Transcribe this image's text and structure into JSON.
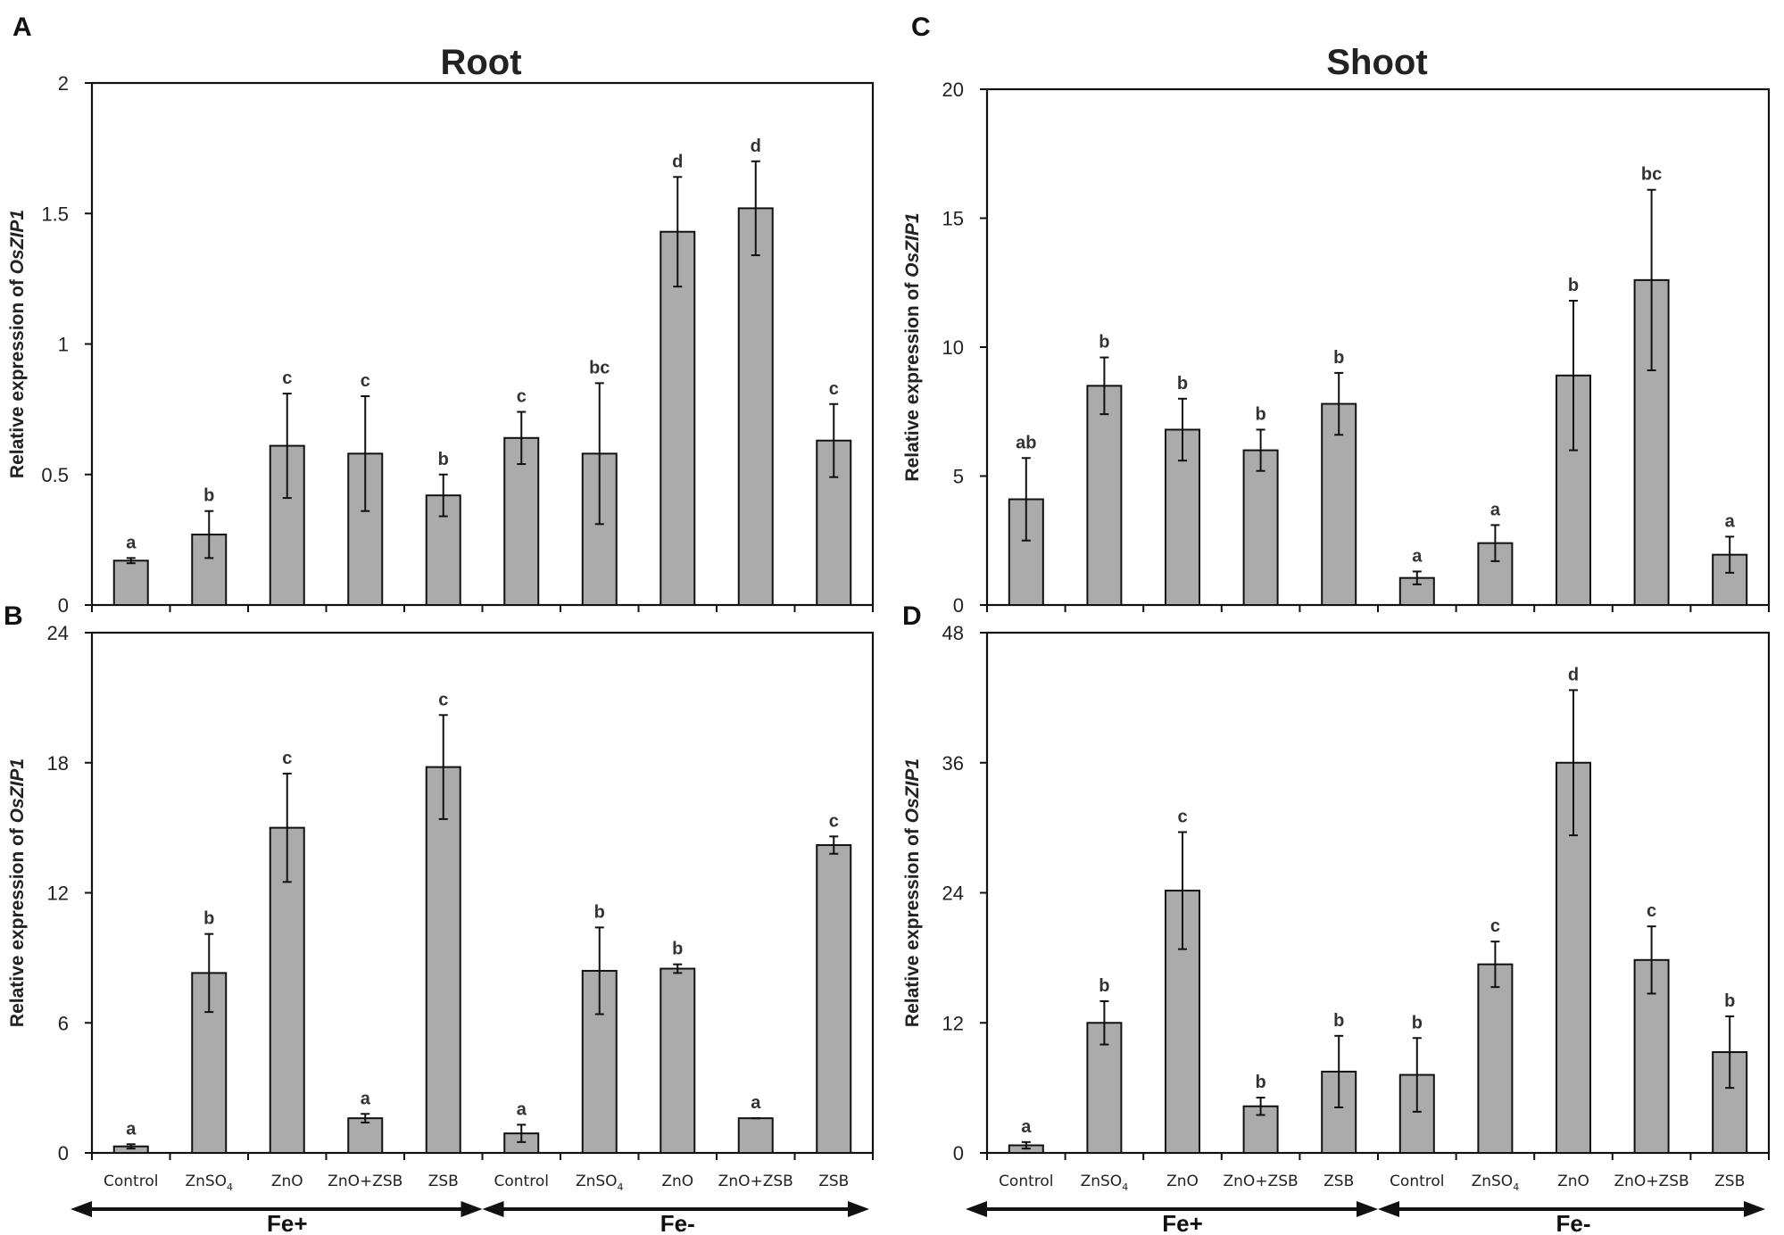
{
  "column_titles": {
    "root": "Root",
    "shoot": "Shoot"
  },
  "groups": [
    "Fe+",
    "Fe-"
  ],
  "chart_data": [
    {
      "panel": "A",
      "type": "bar",
      "title": "Root",
      "ylabel_prefix": "Relative expression of ",
      "ylabel_gene": "OsZIP1",
      "ylim": [
        0,
        2
      ],
      "yticks": [
        0,
        0.5,
        1,
        1.5,
        2
      ],
      "categories": [
        "Control",
        "ZnSO4",
        "ZnO",
        "ZnO+ZSB",
        "ZSB",
        "Control",
        "ZnSO4",
        "ZnO",
        "ZnO+ZSB",
        "ZSB"
      ],
      "values": [
        0.17,
        0.27,
        0.61,
        0.58,
        0.42,
        0.64,
        0.58,
        1.43,
        1.52,
        0.63
      ],
      "errors": [
        0.01,
        0.09,
        0.2,
        0.22,
        0.08,
        0.1,
        0.27,
        0.21,
        0.18,
        0.14
      ],
      "labels": [
        "a",
        "b",
        "c",
        "c",
        "b",
        "c",
        "bc",
        "d",
        "d",
        "c"
      ]
    },
    {
      "panel": "B",
      "type": "bar",
      "title": "",
      "ylabel_prefix": "Relative expression of ",
      "ylabel_gene": "OsZIP1",
      "ylim": [
        0,
        24
      ],
      "yticks": [
        0,
        6,
        12,
        18,
        24
      ],
      "categories": [
        "Control",
        "ZnSO4",
        "ZnO",
        "ZnO+ZSB",
        "ZSB",
        "Control",
        "ZnSO4",
        "ZnO",
        "ZnO+ZSB",
        "ZSB"
      ],
      "values": [
        0.3,
        8.3,
        15.0,
        1.6,
        17.8,
        0.9,
        8.4,
        8.5,
        1.6,
        14.2
      ],
      "errors": [
        0.1,
        1.8,
        2.5,
        0.2,
        2.4,
        0.4,
        2.0,
        0.2,
        0.0,
        0.4
      ],
      "labels": [
        "a",
        "b",
        "c",
        "a",
        "c",
        "a",
        "b",
        "b",
        "a",
        "c"
      ]
    },
    {
      "panel": "C",
      "type": "bar",
      "title": "Shoot",
      "ylabel_prefix": "Relative expression of ",
      "ylabel_gene": "OsZIP1",
      "ylim": [
        0,
        20
      ],
      "yticks": [
        0,
        5,
        10,
        15,
        20
      ],
      "categories": [
        "Control",
        "ZnSO4",
        "ZnO",
        "ZnO+ZSB",
        "ZSB",
        "Control",
        "ZnSO4",
        "ZnO",
        "ZnO+ZSB",
        "ZSB"
      ],
      "values": [
        4.1,
        8.5,
        6.8,
        6.0,
        7.8,
        1.05,
        2.4,
        8.9,
        12.6,
        1.95
      ],
      "errors": [
        1.6,
        1.1,
        1.2,
        0.8,
        1.2,
        0.25,
        0.7,
        2.9,
        3.5,
        0.7
      ],
      "labels": [
        "ab",
        "b",
        "b",
        "b",
        "b",
        "a",
        "a",
        "b",
        "bc",
        "a"
      ]
    },
    {
      "panel": "D",
      "type": "bar",
      "title": "",
      "ylabel_prefix": "Relative expression of ",
      "ylabel_gene": "OsZIP1",
      "ylim": [
        0,
        48
      ],
      "yticks": [
        0,
        12,
        24,
        36,
        48
      ],
      "categories": [
        "Control",
        "ZnSO4",
        "ZnO",
        "ZnO+ZSB",
        "ZSB",
        "Control",
        "ZnSO4",
        "ZnO",
        "ZnO+ZSB",
        "ZSB"
      ],
      "values": [
        0.7,
        12.0,
        24.2,
        4.3,
        7.5,
        7.2,
        17.4,
        36.0,
        17.8,
        9.3
      ],
      "errors": [
        0.3,
        2.0,
        5.4,
        0.8,
        3.3,
        3.4,
        2.1,
        6.7,
        3.1,
        3.3
      ],
      "labels": [
        "a",
        "b",
        "c",
        "b",
        "b",
        "b",
        "c",
        "d",
        "c",
        "b"
      ]
    }
  ],
  "colors": {
    "bar": "#ababab",
    "stroke": "#111111"
  }
}
